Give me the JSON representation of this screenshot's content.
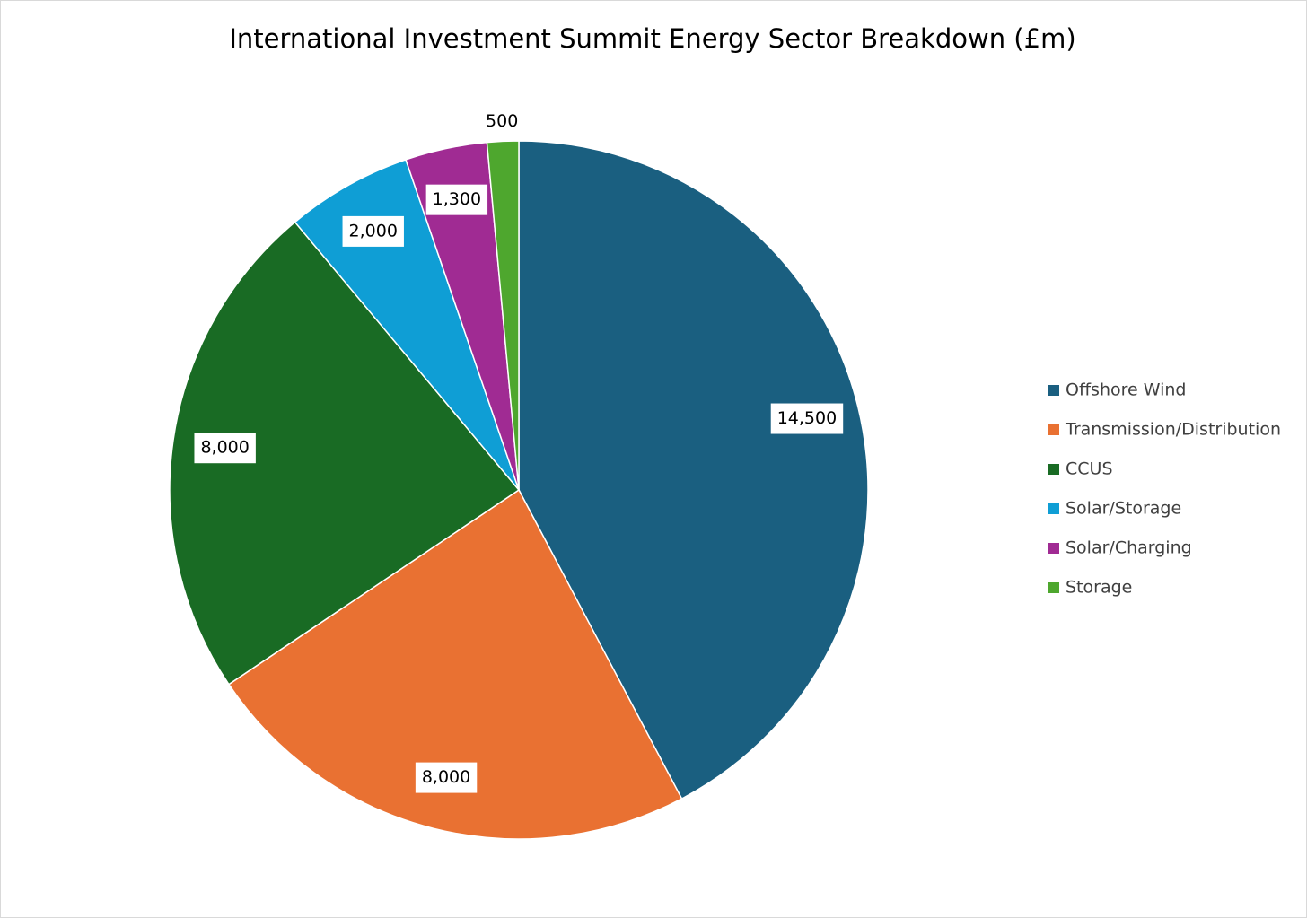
{
  "chart_data": {
    "type": "pie",
    "title": "International Investment Summit Energy Sector Breakdown (£m)",
    "categories": [
      "Offshore Wind",
      "Transmission/Distribution",
      "CCUS",
      "Solar/Storage",
      "Solar/Charging",
      "Storage"
    ],
    "values": [
      14500,
      8000,
      8000,
      2000,
      1300,
      500
    ],
    "value_labels": [
      "14,500",
      "8,000",
      "8,000",
      "2,000",
      "1,300",
      "500"
    ],
    "colors": [
      "#1a5f80",
      "#e97132",
      "#196b24",
      "#0f9ed5",
      "#a02b93",
      "#4ea72e"
    ],
    "legend": "right"
  }
}
